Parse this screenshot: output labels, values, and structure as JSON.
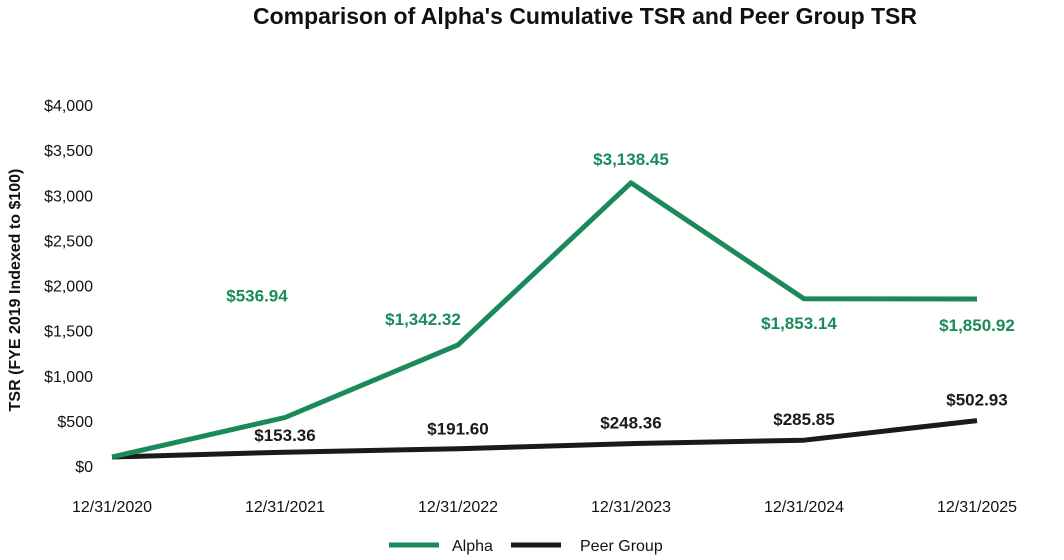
{
  "chart_data": {
    "type": "line",
    "title": "Comparison of Alpha's Cumulative TSR and Peer Group TSR",
    "xlabel": "",
    "ylabel": "TSR (FYE 2019 Indexed to $100)",
    "categories": [
      "12/31/2020",
      "12/31/2021",
      "12/31/2022",
      "12/31/2023",
      "12/31/2024",
      "12/31/2025"
    ],
    "ylim": [
      0,
      4000
    ],
    "yticks": [
      0,
      500,
      1000,
      1500,
      2000,
      2500,
      3000,
      3500,
      4000
    ],
    "ytick_labels": [
      "$0",
      "$500",
      "$1,000",
      "$1,500",
      "$2,000",
      "$2,500",
      "$3,000",
      "$3,500",
      "$4,000"
    ],
    "grid": false,
    "legend_position": "bottom-center",
    "series": [
      {
        "name": "Alpha",
        "color": "#1a8a5a",
        "values": [
          100,
          536.94,
          1342.32,
          3138.45,
          1853.14,
          1850.92
        ],
        "labels": [
          "",
          "$536.94",
          "$1,342.32",
          "$3,138.45",
          "$1,853.14",
          "$1,850.92"
        ]
      },
      {
        "name": "Peer Group",
        "color": "#1a1a1a",
        "values": [
          100,
          153.36,
          191.6,
          248.36,
          285.85,
          502.93
        ],
        "labels": [
          "",
          "$153.36",
          "$191.60",
          "$248.36",
          "$285.85",
          "$502.93"
        ]
      }
    ]
  }
}
